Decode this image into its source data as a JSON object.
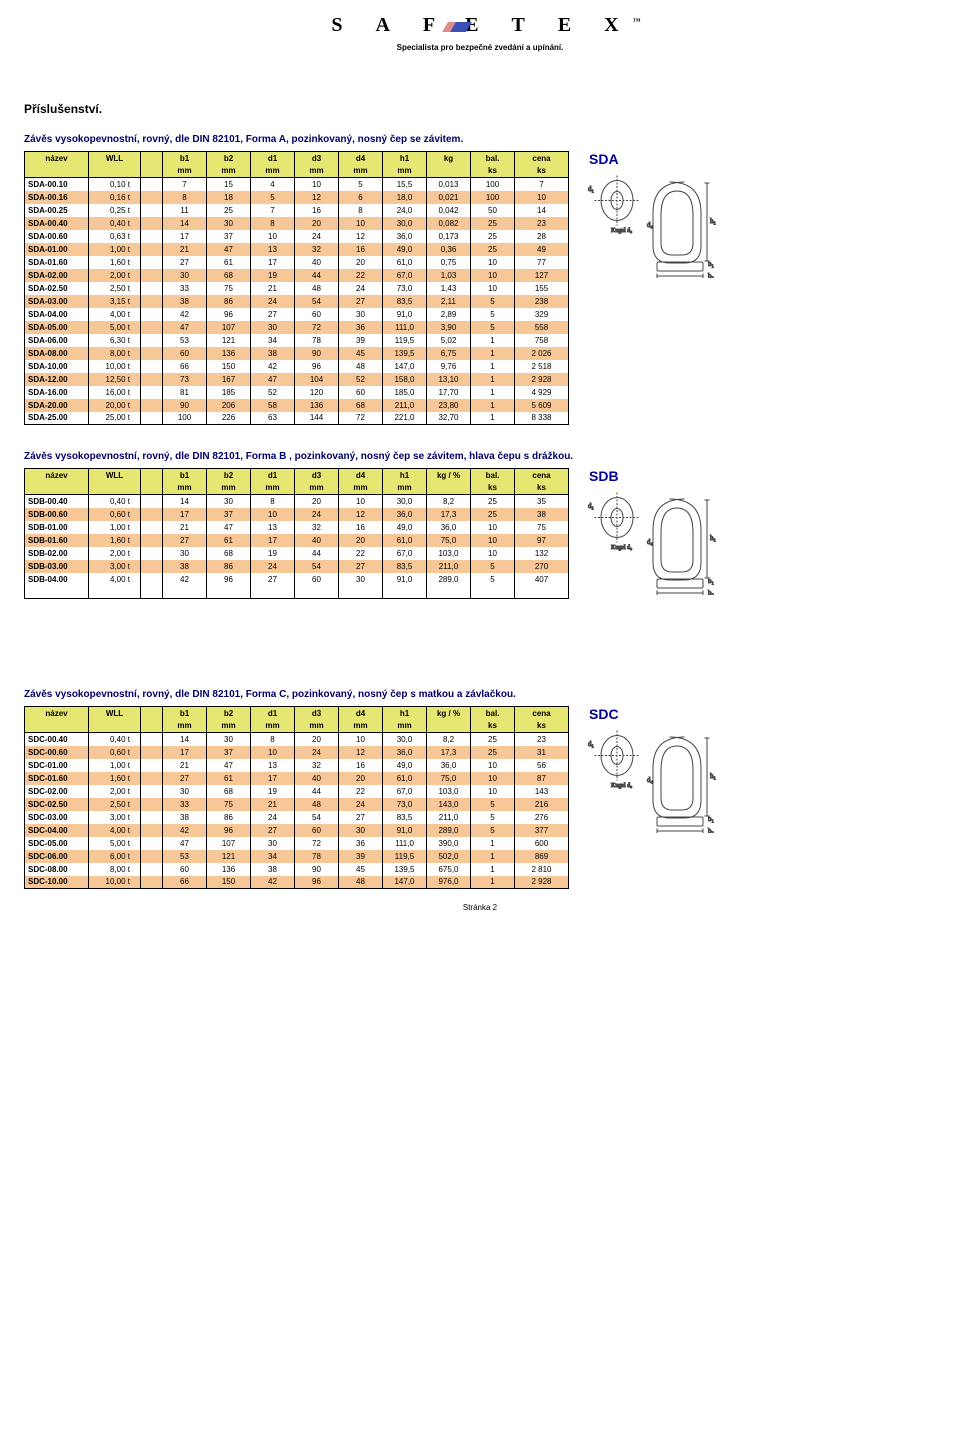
{
  "brand": {
    "name": "SAFETEX",
    "tagline": "Specialista pro bezpečné zvedání a upínání.",
    "bar_left": "#db8d8d",
    "bar_right": "#3a4fb7"
  },
  "page_header": "Příslušenství.",
  "footer": "Stránka 2",
  "colors": {
    "header_bg": "#e6e673",
    "row_alt_bg": "#f7c797",
    "row_bg": "#ffffff",
    "title_color": "#000066"
  },
  "col_widths": {
    "name": 64,
    "wll": 52,
    "gap": 22,
    "dim": 44,
    "small": 44,
    "bal": 44,
    "cena": 54
  },
  "tables": {
    "SDA": {
      "title": "Závěs vysokopevnostní, rovný, dle DIN 82101, Forma A, pozinkovaný, nosný čep se závitem.",
      "code": "SDA",
      "kg_header": "kg",
      "rows": [
        [
          "SDA-00.10",
          "0,10 t",
          "7",
          "15",
          "4",
          "10",
          "5",
          "15,5",
          "0,013",
          "100",
          "7"
        ],
        [
          "SDA-00.16",
          "0,16 t",
          "8",
          "18",
          "5",
          "12",
          "6",
          "18,0",
          "0,021",
          "100",
          "10"
        ],
        [
          "SDA-00.25",
          "0,25 t",
          "11",
          "25",
          "7",
          "16",
          "8",
          "24,0",
          "0,042",
          "50",
          "14"
        ],
        [
          "SDA-00.40",
          "0,40 t",
          "14",
          "30",
          "8",
          "20",
          "10",
          "30,0",
          "0,082",
          "25",
          "23"
        ],
        [
          "SDA-00.60",
          "0,63 t",
          "17",
          "37",
          "10",
          "24",
          "12",
          "36,0",
          "0,173",
          "25",
          "28"
        ],
        [
          "SDA-01.00",
          "1,00 t",
          "21",
          "47",
          "13",
          "32",
          "16",
          "49,0",
          "0,36",
          "25",
          "49"
        ],
        [
          "SDA-01.60",
          "1,60 t",
          "27",
          "61",
          "17",
          "40",
          "20",
          "61,0",
          "0,75",
          "10",
          "77"
        ],
        [
          "SDA-02.00",
          "2,00 t",
          "30",
          "68",
          "19",
          "44",
          "22",
          "67,0",
          "1,03",
          "10",
          "127"
        ],
        [
          "SDA-02.50",
          "2,50 t",
          "33",
          "75",
          "21",
          "48",
          "24",
          "73,0",
          "1,43",
          "10",
          "155"
        ],
        [
          "SDA-03.00",
          "3,15 t",
          "38",
          "86",
          "24",
          "54",
          "27",
          "83,5",
          "2,11",
          "5",
          "238"
        ],
        [
          "SDA-04.00",
          "4,00 t",
          "42",
          "96",
          "27",
          "60",
          "30",
          "91,0",
          "2,89",
          "5",
          "329"
        ],
        [
          "SDA-05.00",
          "5,00 t",
          "47",
          "107",
          "30",
          "72",
          "36",
          "111,0",
          "3,90",
          "5",
          "558"
        ],
        [
          "SDA-06.00",
          "6,30 t",
          "53",
          "121",
          "34",
          "78",
          "39",
          "119,5",
          "5,02",
          "1",
          "758"
        ],
        [
          "SDA-08.00",
          "8,00 t",
          "60",
          "136",
          "38",
          "90",
          "45",
          "139,5",
          "6,75",
          "1",
          "2 026"
        ],
        [
          "SDA-10.00",
          "10,00 t",
          "66",
          "150",
          "42",
          "96",
          "48",
          "147,0",
          "9,76",
          "1",
          "2 518"
        ],
        [
          "SDA-12.00",
          "12,50 t",
          "73",
          "167",
          "47",
          "104",
          "52",
          "158,0",
          "13,10",
          "1",
          "2 928"
        ],
        [
          "SDA-16.00",
          "16,00 t",
          "81",
          "185",
          "52",
          "120",
          "60",
          "185,0",
          "17,70",
          "1",
          "4 929"
        ],
        [
          "SDA-20.00",
          "20,00 t",
          "90",
          "206",
          "58",
          "136",
          "68",
          "211,0",
          "23,80",
          "1",
          "5 609"
        ],
        [
          "SDA-25.00",
          "25,00 t",
          "100",
          "226",
          "63",
          "144",
          "72",
          "221,0",
          "32,70",
          "1",
          "8 338"
        ]
      ]
    },
    "SDB": {
      "title": "Závěs vysokopevnostní, rovný, dle DIN 82101, Forma B , pozinkovaný, nosný čep se závitem, hlava čepu s drážkou.",
      "code": "SDB",
      "kg_header": "kg / %",
      "rows": [
        [
          "SDB-00.40",
          "0,40 t",
          "14",
          "30",
          "8",
          "20",
          "10",
          "30,0",
          "8,2",
          "25",
          "35"
        ],
        [
          "SDB-00.60",
          "0,60 t",
          "17",
          "37",
          "10",
          "24",
          "12",
          "36,0",
          "17,3",
          "25",
          "38"
        ],
        [
          "SDB-01.00",
          "1,00 t",
          "21",
          "47",
          "13",
          "32",
          "16",
          "49,0",
          "36,0",
          "10",
          "75"
        ],
        [
          "SDB-01.60",
          "1,60 t",
          "27",
          "61",
          "17",
          "40",
          "20",
          "61,0",
          "75,0",
          "10",
          "97"
        ],
        [
          "SDB-02.00",
          "2,00 t",
          "30",
          "68",
          "19",
          "44",
          "22",
          "67,0",
          "103,0",
          "10",
          "132"
        ],
        [
          "SDB-03.00",
          "3,00 t",
          "38",
          "86",
          "24",
          "54",
          "27",
          "83,5",
          "211,0",
          "5",
          "270"
        ],
        [
          "SDB-04.00",
          "4,00 t",
          "42",
          "96",
          "27",
          "60",
          "30",
          "91,0",
          "289,0",
          "5",
          "407"
        ]
      ],
      "pad_rows": 4
    },
    "SDC": {
      "title": "Závěs vysokopevnostní, rovný, dle DIN 82101, Forma C, pozinkovaný, nosný čep s matkou a závlačkou.",
      "code": "SDC",
      "kg_header": "kg / %",
      "rows": [
        [
          "SDC-00.40",
          "0,40 t",
          "14",
          "30",
          "8",
          "20",
          "10",
          "30,0",
          "8,2",
          "25",
          "23"
        ],
        [
          "SDC-00.60",
          "0,60 t",
          "17",
          "37",
          "10",
          "24",
          "12",
          "36,0",
          "17,3",
          "25",
          "31"
        ],
        [
          "SDC-01.00",
          "1,00 t",
          "21",
          "47",
          "13",
          "32",
          "16",
          "49,0",
          "36,0",
          "10",
          "56"
        ],
        [
          "SDC-01.60",
          "1,60 t",
          "27",
          "61",
          "17",
          "40",
          "20",
          "61,0",
          "75,0",
          "10",
          "87"
        ],
        [
          "SDC-02.00",
          "2,00 t",
          "30",
          "68",
          "19",
          "44",
          "22",
          "67,0",
          "103,0",
          "10",
          "143"
        ],
        [
          "SDC-02.50",
          "2,50 t",
          "33",
          "75",
          "21",
          "48",
          "24",
          "73,0",
          "143,0",
          "5",
          "216"
        ],
        [
          "SDC-03.00",
          "3,00 t",
          "38",
          "86",
          "24",
          "54",
          "27",
          "83,5",
          "211,0",
          "5",
          "276"
        ],
        [
          "SDC-04.00",
          "4,00 t",
          "42",
          "96",
          "27",
          "60",
          "30",
          "91,0",
          "289,0",
          "5",
          "377"
        ],
        [
          "SDC-05.00",
          "5,00 t",
          "47",
          "107",
          "30",
          "72",
          "36",
          "111,0",
          "390,0",
          "1",
          "600"
        ],
        [
          "SDC-06.00",
          "6,00 t",
          "53",
          "121",
          "34",
          "78",
          "39",
          "119,5",
          "502,0",
          "1",
          "869"
        ],
        [
          "SDC-08.00",
          "8,00 t",
          "60",
          "136",
          "38",
          "90",
          "45",
          "139,5",
          "675,0",
          "1",
          "2 810"
        ],
        [
          "SDC-10.00",
          "10,00 t",
          "66",
          "150",
          "42",
          "96",
          "48",
          "147,0",
          "976,0",
          "1",
          "2 928"
        ]
      ]
    }
  },
  "headers": {
    "labels": [
      "název",
      "WLL",
      "",
      "b1",
      "b2",
      "d1",
      "d3",
      "d4",
      "h1",
      "KG",
      "bal.",
      "cena"
    ],
    "units": [
      "",
      "",
      "",
      "mm",
      "mm",
      "mm",
      "mm",
      "mm",
      "mm",
      "",
      "ks",
      "ks"
    ]
  }
}
